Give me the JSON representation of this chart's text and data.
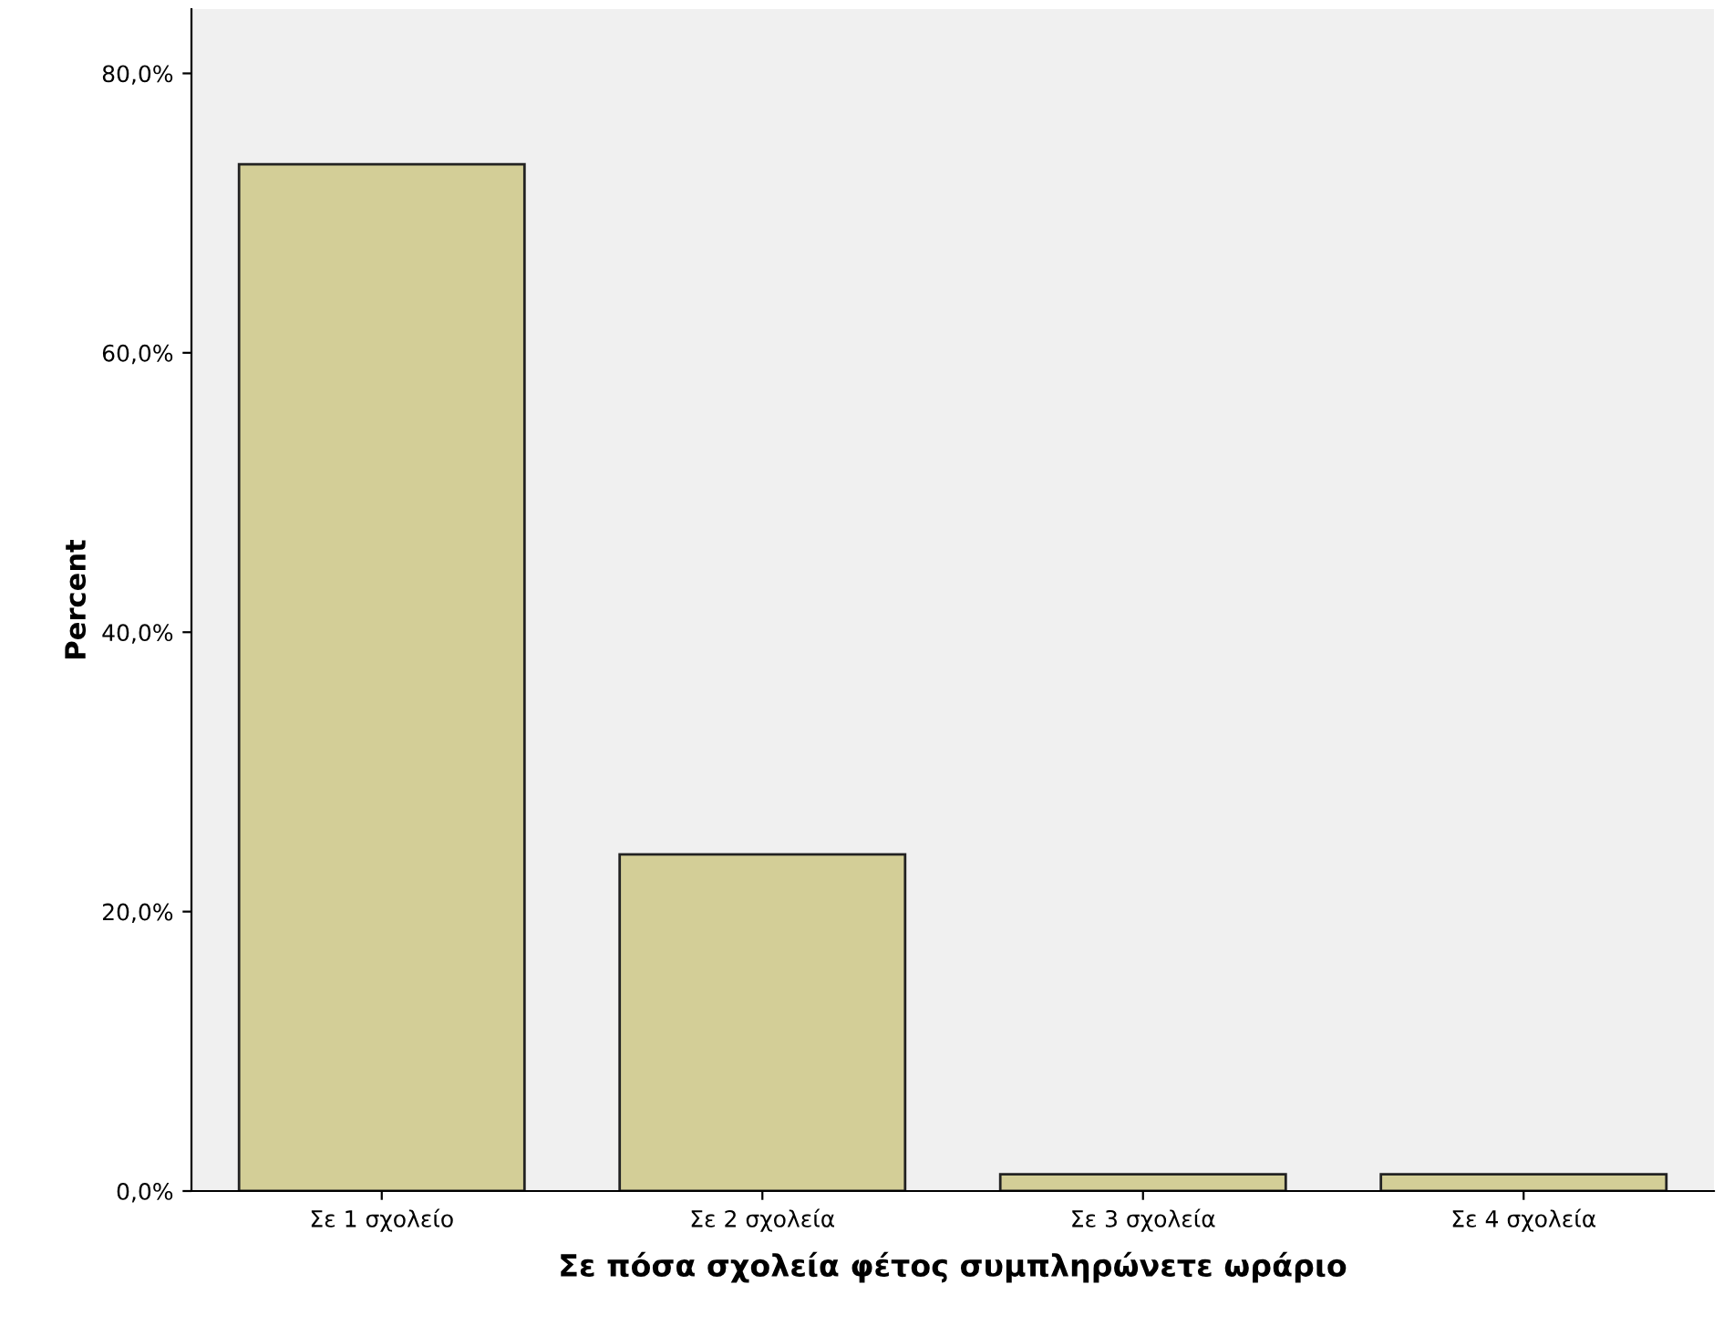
{
  "chart_data": {
    "type": "bar",
    "xlabel": "Σε πόσα σχολεία φέτος συμπληρώνετε ωράριο",
    "ylabel": "Percent",
    "categories": [
      "Σε 1 σχολείο",
      "Σε 2 σχολεία",
      "Σε 3 σχολεία",
      "Σε 4 σχολεία"
    ],
    "values": [
      73.5,
      24.1,
      1.2,
      1.2
    ],
    "color": "#d3ce97",
    "ylim": [
      0,
      84.6
    ],
    "yticks": [
      {
        "value": 0,
        "label": "0,0%"
      },
      {
        "value": 20,
        "label": "20,0%"
      },
      {
        "value": 40,
        "label": "40,0%"
      },
      {
        "value": 60,
        "label": "60,0%"
      },
      {
        "value": 80,
        "label": "80,0%"
      }
    ],
    "grid": false
  }
}
